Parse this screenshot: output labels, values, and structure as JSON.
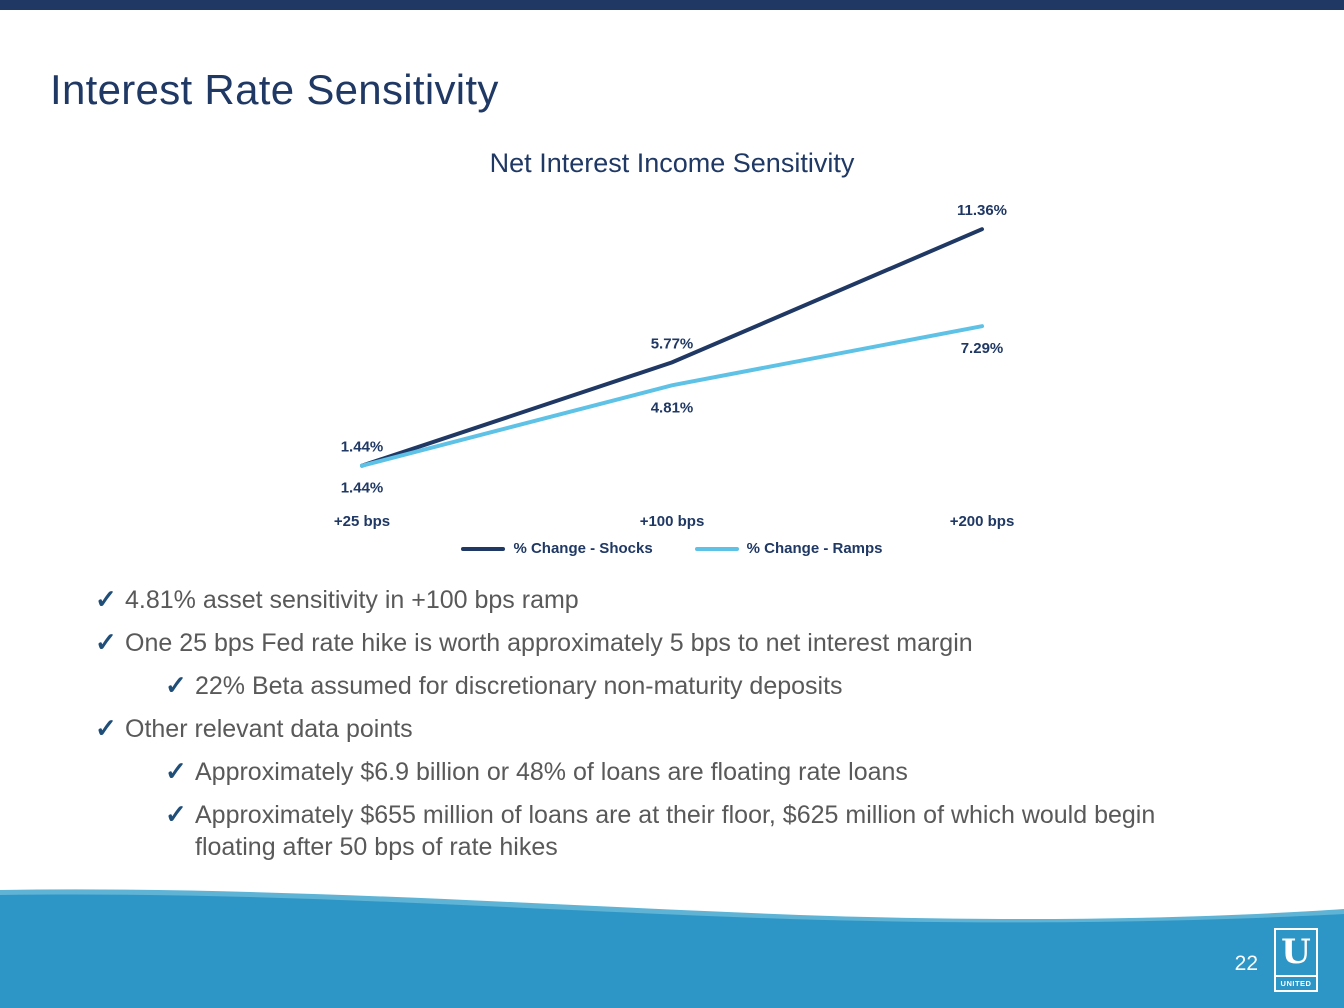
{
  "slide": {
    "title": "Interest Rate Sensitivity",
    "page_number": "22"
  },
  "logo": {
    "initial": "U",
    "wordmark": "UNITED"
  },
  "colors": {
    "navy": "#1F3864",
    "ramps_blue": "#5EC1E6",
    "body_gray": "#595959",
    "footer_blue": "#2E96C6",
    "footer_blue_light": "#5FB4D6",
    "check_blue": "#1F4E79"
  },
  "chart_data": {
    "type": "line",
    "title": "Net Interest Income Sensitivity",
    "categories": [
      "+25 bps",
      "+100 bps",
      "+200 bps"
    ],
    "series": [
      {
        "name": "% Change - Shocks",
        "values": [
          1.44,
          5.77,
          11.36
        ],
        "color": "#1F3864",
        "label_position": "above"
      },
      {
        "name": "% Change - Ramps",
        "values": [
          1.44,
          4.81,
          7.29
        ],
        "color": "#5EC1E6",
        "label_position": "below"
      }
    ],
    "value_suffix": "%",
    "ylim": [
      0,
      12.5
    ],
    "grid": false,
    "legend_position": "bottom"
  },
  "bullets": [
    {
      "level": 1,
      "text": "4.81% asset sensitivity in +100 bps ramp"
    },
    {
      "level": 1,
      "text": "One 25 bps Fed rate hike is worth approximately 5 bps to net interest margin"
    },
    {
      "level": 2,
      "text": "22% Beta assumed for discretionary non-maturity deposits"
    },
    {
      "level": 1,
      "text": "Other relevant data points"
    },
    {
      "level": 2,
      "text": "Approximately $6.9 billion or 48% of loans are floating rate loans"
    },
    {
      "level": 2,
      "text": "Approximately $655 million of loans are at their floor, $625 million of which would begin floating after 50 bps of rate hikes"
    }
  ]
}
